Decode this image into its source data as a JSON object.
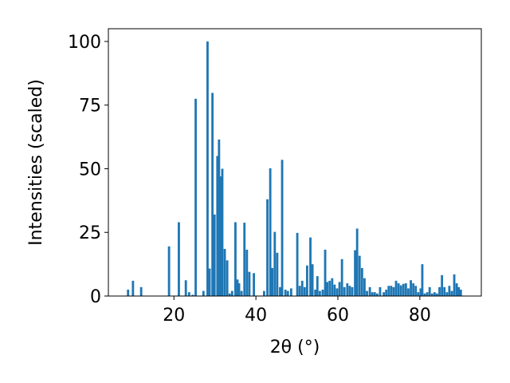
{
  "chart_data": {
    "type": "bar",
    "xlabel": "2θ (°)",
    "ylabel": "Intensities (scaled)",
    "xlim": [
      4,
      95
    ],
    "ylim": [
      0,
      105
    ],
    "xticks": [
      20,
      40,
      60,
      80
    ],
    "yticks": [
      0,
      25,
      50,
      75,
      100
    ],
    "bar_color": "#1f77b4",
    "bar_width_deg": 0.55,
    "points": [
      {
        "x": 8.8,
        "y": 2.5
      },
      {
        "x": 10.0,
        "y": 6.0
      },
      {
        "x": 12.0,
        "y": 3.5
      },
      {
        "x": 18.8,
        "y": 19.5
      },
      {
        "x": 21.2,
        "y": 29.0
      },
      {
        "x": 22.9,
        "y": 6.2
      },
      {
        "x": 23.7,
        "y": 1.5
      },
      {
        "x": 24.6,
        "y": 0.5
      },
      {
        "x": 25.3,
        "y": 77.5
      },
      {
        "x": 27.2,
        "y": 2.0
      },
      {
        "x": 28.2,
        "y": 100.0
      },
      {
        "x": 28.7,
        "y": 10.8
      },
      {
        "x": 29.4,
        "y": 79.8
      },
      {
        "x": 29.9,
        "y": 32.0
      },
      {
        "x": 30.6,
        "y": 55.0
      },
      {
        "x": 31.0,
        "y": 61.5
      },
      {
        "x": 31.5,
        "y": 47.0
      },
      {
        "x": 31.8,
        "y": 50.0
      },
      {
        "x": 32.4,
        "y": 18.5
      },
      {
        "x": 33.0,
        "y": 14.0
      },
      {
        "x": 33.6,
        "y": 1.0
      },
      {
        "x": 34.2,
        "y": 2.0
      },
      {
        "x": 35.0,
        "y": 29.0
      },
      {
        "x": 35.5,
        "y": 6.5
      },
      {
        "x": 35.9,
        "y": 5.0
      },
      {
        "x": 36.5,
        "y": 2.0
      },
      {
        "x": 37.2,
        "y": 28.8
      },
      {
        "x": 37.8,
        "y": 18.2
      },
      {
        "x": 38.4,
        "y": 9.5
      },
      {
        "x": 39.5,
        "y": 9.0
      },
      {
        "x": 42.0,
        "y": 2.0
      },
      {
        "x": 42.8,
        "y": 38.0
      },
      {
        "x": 43.5,
        "y": 50.2
      },
      {
        "x": 44.0,
        "y": 11.0
      },
      {
        "x": 44.6,
        "y": 25.2
      },
      {
        "x": 45.2,
        "y": 17.0
      },
      {
        "x": 45.9,
        "y": 3.5
      },
      {
        "x": 46.4,
        "y": 53.5
      },
      {
        "x": 47.2,
        "y": 2.5
      },
      {
        "x": 47.8,
        "y": 2.0
      },
      {
        "x": 48.6,
        "y": 3.0
      },
      {
        "x": 50.1,
        "y": 24.8
      },
      {
        "x": 50.7,
        "y": 4.0
      },
      {
        "x": 51.3,
        "y": 6.0
      },
      {
        "x": 51.9,
        "y": 3.5
      },
      {
        "x": 52.5,
        "y": 12.0
      },
      {
        "x": 53.3,
        "y": 23.0
      },
      {
        "x": 53.8,
        "y": 12.5
      },
      {
        "x": 54.5,
        "y": 2.5
      },
      {
        "x": 55.0,
        "y": 7.8
      },
      {
        "x": 55.6,
        "y": 2.0
      },
      {
        "x": 56.3,
        "y": 2.5
      },
      {
        "x": 56.9,
        "y": 18.2
      },
      {
        "x": 57.4,
        "y": 5.5
      },
      {
        "x": 58.0,
        "y": 6.0
      },
      {
        "x": 58.6,
        "y": 7.0
      },
      {
        "x": 59.2,
        "y": 4.5
      },
      {
        "x": 59.8,
        "y": 3.0
      },
      {
        "x": 60.4,
        "y": 5.5
      },
      {
        "x": 61.0,
        "y": 14.5
      },
      {
        "x": 61.6,
        "y": 3.5
      },
      {
        "x": 62.3,
        "y": 5.0
      },
      {
        "x": 62.9,
        "y": 4.0
      },
      {
        "x": 63.5,
        "y": 3.5
      },
      {
        "x": 64.2,
        "y": 18.0
      },
      {
        "x": 64.7,
        "y": 26.5
      },
      {
        "x": 65.3,
        "y": 15.8
      },
      {
        "x": 65.9,
        "y": 11.0
      },
      {
        "x": 66.5,
        "y": 7.0
      },
      {
        "x": 67.1,
        "y": 2.0
      },
      {
        "x": 67.8,
        "y": 3.5
      },
      {
        "x": 68.4,
        "y": 1.5
      },
      {
        "x": 69.0,
        "y": 1.5
      },
      {
        "x": 69.6,
        "y": 1.0
      },
      {
        "x": 70.3,
        "y": 3.5
      },
      {
        "x": 71.2,
        "y": 1.5
      },
      {
        "x": 71.8,
        "y": 2.5
      },
      {
        "x": 72.4,
        "y": 4.0
      },
      {
        "x": 73.0,
        "y": 4.0
      },
      {
        "x": 73.6,
        "y": 3.5
      },
      {
        "x": 74.2,
        "y": 6.0
      },
      {
        "x": 74.8,
        "y": 5.0
      },
      {
        "x": 75.4,
        "y": 4.2
      },
      {
        "x": 76.0,
        "y": 4.8
      },
      {
        "x": 76.6,
        "y": 5.0
      },
      {
        "x": 77.2,
        "y": 3.0
      },
      {
        "x": 77.8,
        "y": 6.2
      },
      {
        "x": 78.4,
        "y": 5.0
      },
      {
        "x": 79.0,
        "y": 4.0
      },
      {
        "x": 79.6,
        "y": 1.5
      },
      {
        "x": 80.2,
        "y": 3.0
      },
      {
        "x": 80.6,
        "y": 12.5
      },
      {
        "x": 81.2,
        "y": 1.0
      },
      {
        "x": 81.8,
        "y": 1.5
      },
      {
        "x": 82.4,
        "y": 3.5
      },
      {
        "x": 83.0,
        "y": 1.0
      },
      {
        "x": 83.6,
        "y": 1.5
      },
      {
        "x": 84.2,
        "y": 1.0
      },
      {
        "x": 84.8,
        "y": 3.5
      },
      {
        "x": 85.4,
        "y": 8.2
      },
      {
        "x": 86.0,
        "y": 3.5
      },
      {
        "x": 86.6,
        "y": 1.5
      },
      {
        "x": 87.2,
        "y": 4.0
      },
      {
        "x": 87.8,
        "y": 2.0
      },
      {
        "x": 88.4,
        "y": 8.5
      },
      {
        "x": 89.0,
        "y": 5.0
      },
      {
        "x": 89.5,
        "y": 3.5
      },
      {
        "x": 90.0,
        "y": 2.5
      }
    ]
  }
}
